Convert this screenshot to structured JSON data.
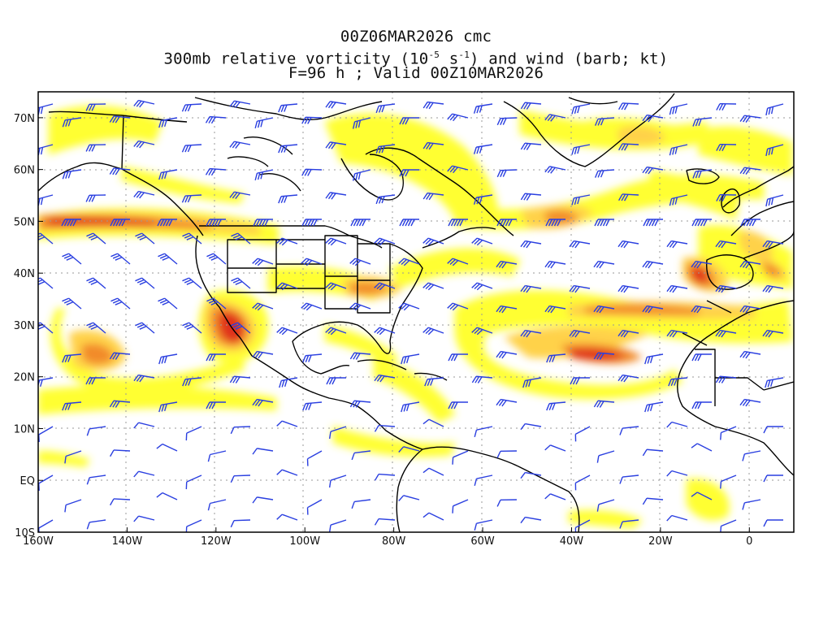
{
  "header": {
    "line1": "00Z06MAR2026 cmc",
    "line2_prefix": "300mb relative vorticity (10",
    "line2_exp1": "-5",
    "line2_mid": " s",
    "line2_exp2": "-1",
    "line2_suffix": ") and wind (barb; kt)",
    "line3": "F=96 h ; Valid 00Z10MAR2026"
  },
  "axes": {
    "lon_labels": [
      "160W",
      "140W",
      "120W",
      "100W",
      "80W",
      "60W",
      "40W",
      "20W",
      "0"
    ],
    "lat_labels": [
      "70N",
      "60N",
      "50N",
      "40N",
      "30N",
      "20N",
      "10N",
      "EQ",
      "10S"
    ],
    "lon_range": [
      -160,
      10
    ],
    "lat_range": [
      -10,
      75
    ],
    "grid": true
  },
  "colors": {
    "shade_low": "#ffff33",
    "shade_mid": "#ffd24a",
    "shade_high": "#f28b2a",
    "shade_max": "#e0321c",
    "barb": "#2a3fe0",
    "coast": "#000000",
    "grid": "#888888"
  }
}
